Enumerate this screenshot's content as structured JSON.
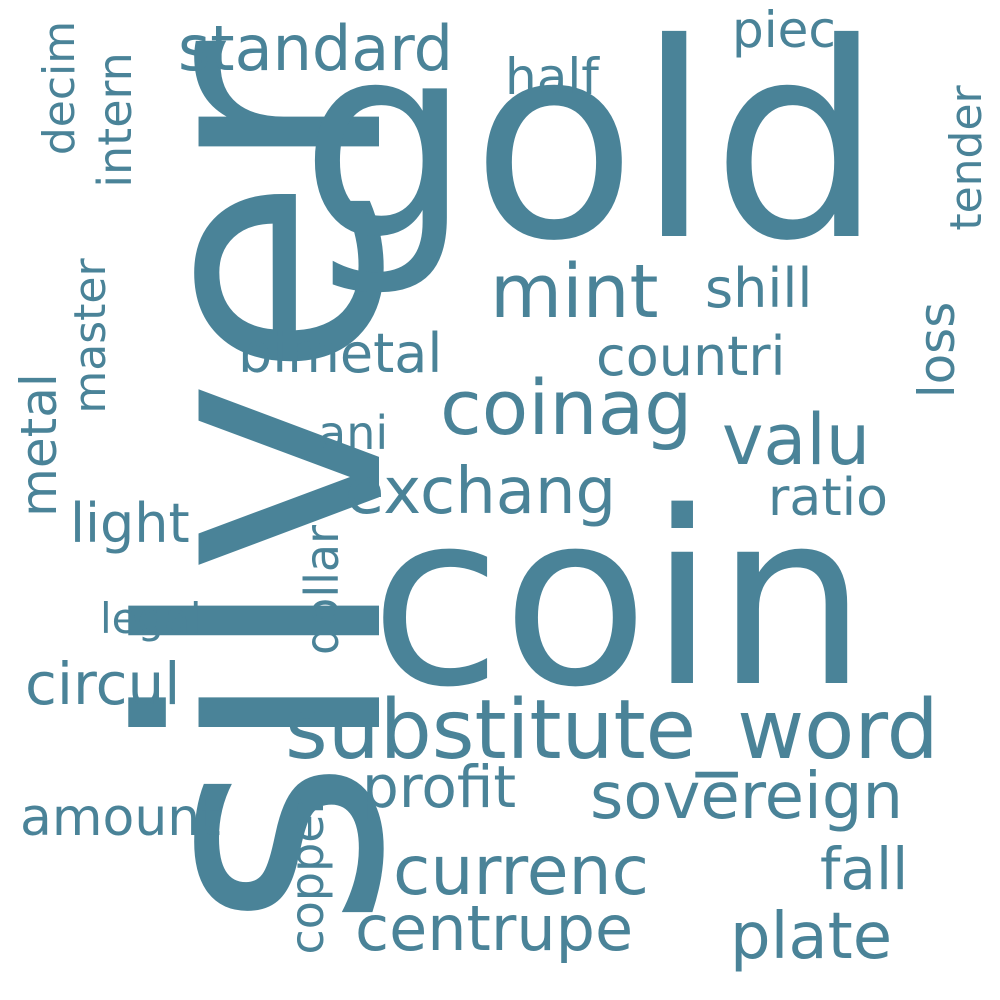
{
  "style": {
    "word_color": "#4a8398",
    "background": "#ffffff"
  },
  "words": {
    "silver": "silver",
    "gold": "gold",
    "coin": "coin",
    "substitute_word": "substitute_word",
    "coinag": "coinag",
    "mint": "mint",
    "standard": "standard",
    "valu": "valu",
    "exchang": "exchang",
    "currenc": "currenc",
    "sovereign": "sovereign",
    "plate": "plate",
    "centrupe": "centrupe",
    "profit": "profit",
    "countri": "countri",
    "bimetal": "bimetal",
    "shill": "shill",
    "ratio": "ratio",
    "fall": "fall",
    "circul": "circul",
    "light": "light",
    "amount": "amount",
    "half": "half",
    "piec": "piec",
    "ani": "ani",
    "legal": "legal",
    "metal": "metal",
    "master": "master",
    "intern": "intern",
    "decim": "decim",
    "tender": "tender",
    "loss": "loss",
    "dollar": "dollar",
    "copper": "copper"
  }
}
